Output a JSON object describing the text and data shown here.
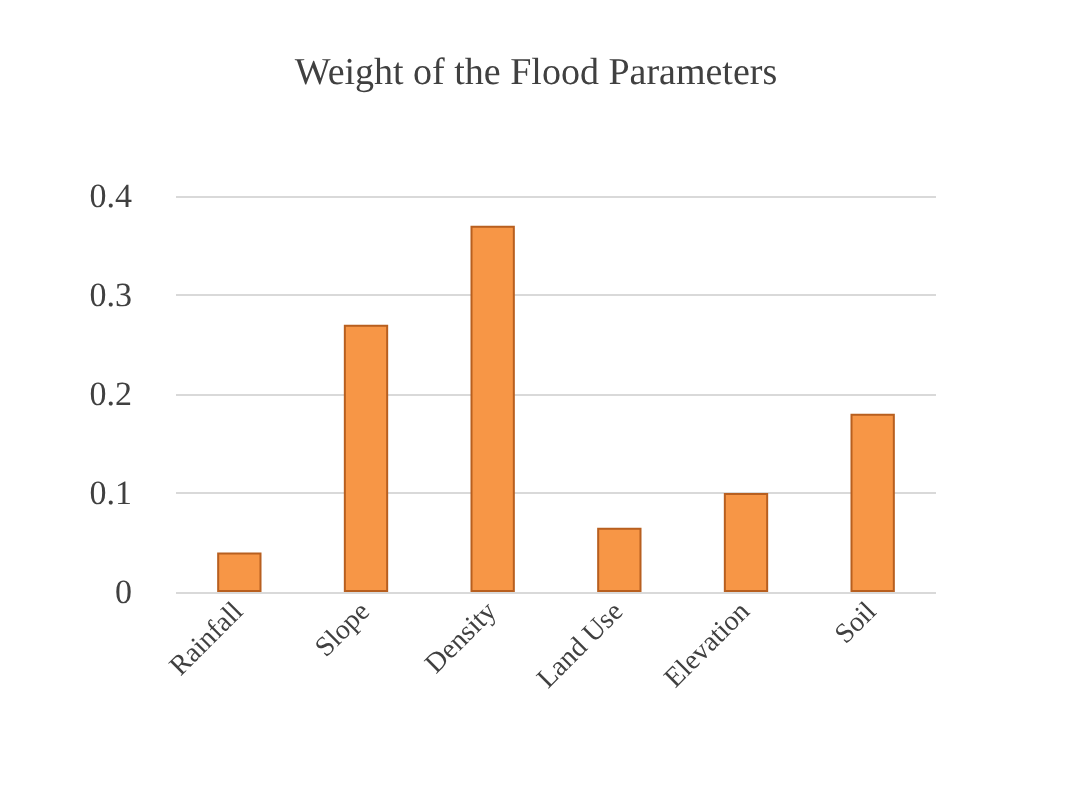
{
  "chart_data": {
    "type": "bar",
    "title": "Weight of the Flood Parameters",
    "categories": [
      "Rainfall",
      "Slope",
      "Density",
      "Land Use",
      "Elevation",
      "Soil"
    ],
    "values": [
      0.04,
      0.27,
      0.37,
      0.065,
      0.1,
      0.18
    ],
    "color": "#f79646",
    "ylim": [
      0,
      0.4
    ],
    "yticks": [
      0,
      0.1,
      0.2,
      0.3,
      0.4
    ],
    "grid": "y"
  }
}
